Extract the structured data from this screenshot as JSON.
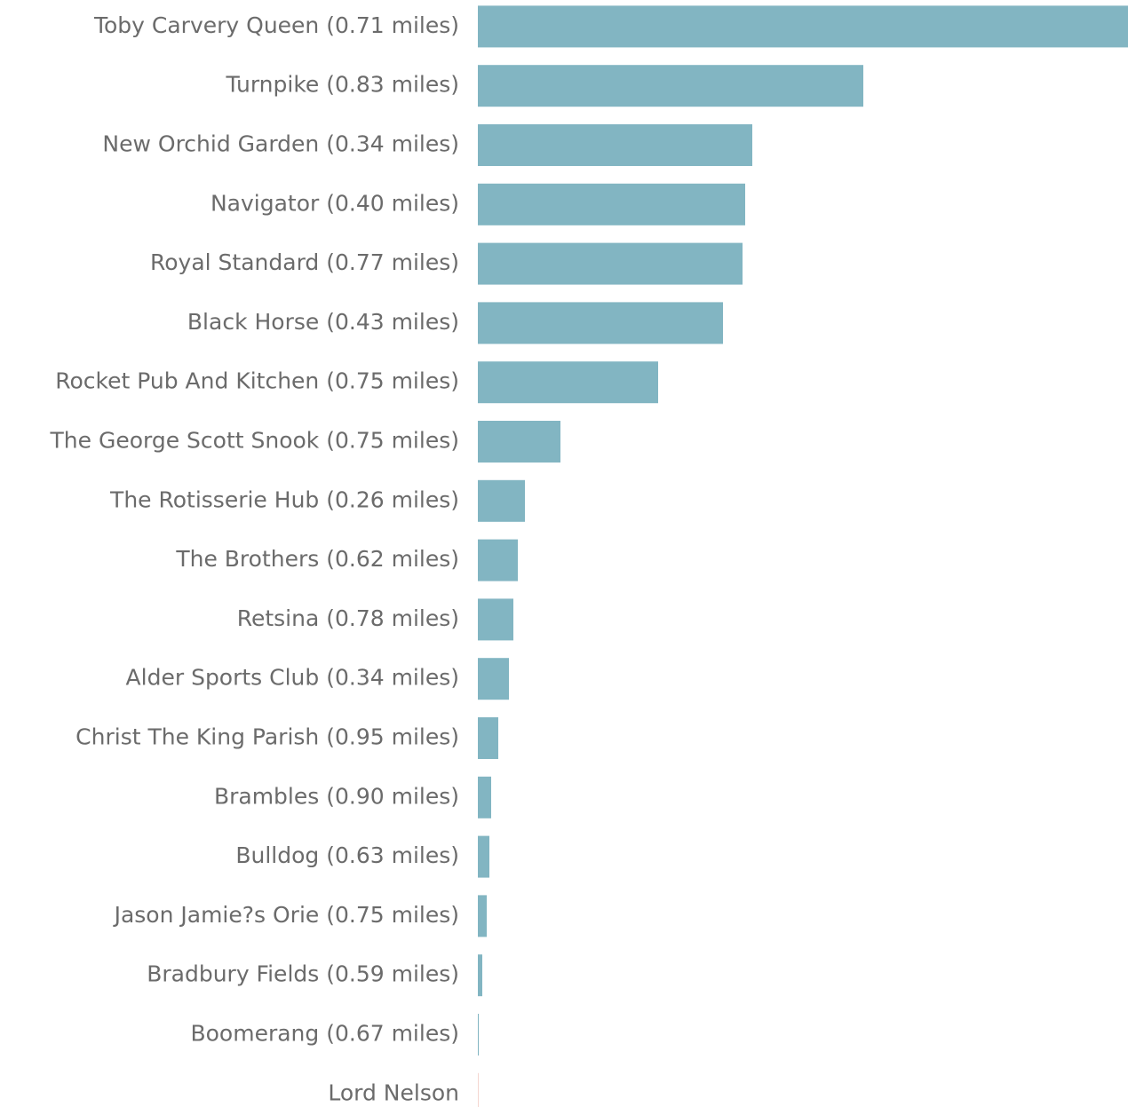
{
  "chart_data": {
    "type": "hbar",
    "categories": [
      "Toby Carvery Queen (0.71 miles)",
      "Turnpike (0.83 miles)",
      "New Orchid Garden (0.34 miles)",
      "Navigator (0.40 miles)",
      "Royal Standard (0.77 miles)",
      "Black Horse (0.43 miles)",
      "Rocket Pub And Kitchen (0.75 miles)",
      "The George Scott Snook (0.75 miles)",
      "The Rotisserie Hub (0.26 miles)",
      "The Brothers (0.62 miles)",
      "Retsina (0.78 miles)",
      "Alder Sports Club (0.34 miles)",
      "Christ The King Parish (0.95 miles)",
      "Brambles (0.90 miles)",
      "Bulldog (0.63 miles)",
      "Jason Jamie?s Orie (0.75 miles)",
      "Bradbury Fields (0.59 miles)",
      "Boomerang (0.67 miles)",
      "Lord Nelson"
    ],
    "values": [
      732,
      434,
      309,
      301,
      298,
      276,
      203,
      93,
      53,
      45,
      40,
      35,
      23,
      15,
      13,
      10,
      5,
      1,
      1
    ],
    "colors": [
      "#82b5c2",
      "#82b5c2",
      "#82b5c2",
      "#82b5c2",
      "#82b5c2",
      "#82b5c2",
      "#82b5c2",
      "#82b5c2",
      "#82b5c2",
      "#82b5c2",
      "#82b5c2",
      "#82b5c2",
      "#82b5c2",
      "#82b5c2",
      "#82b5c2",
      "#82b5c2",
      "#82b5c2",
      "#82b5c2",
      "#f5d6d0"
    ]
  }
}
